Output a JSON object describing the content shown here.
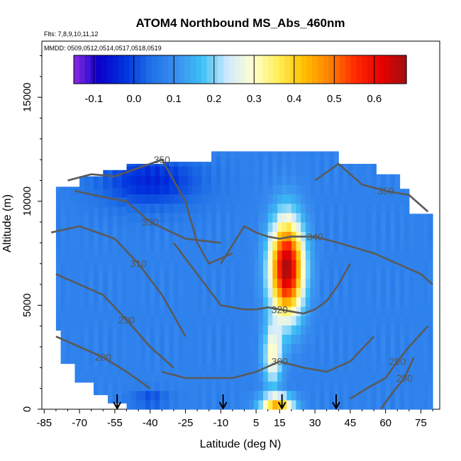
{
  "chart_data": {
    "type": "heatmap",
    "title": "ATOM4 Northbound MS_Abs_460nm",
    "flights_note": "Flts: 7,8,9,10,11,12",
    "dates_note": "MMDD: 0509,0512,0514,0517,0518,0519",
    "xlabel": "Latitude (deg N)",
    "ylabel": "Altitude (m)",
    "xlim": [
      -86,
      83
    ],
    "ylim": [
      0,
      17700
    ],
    "x_ticks": [
      -85,
      -70,
      -55,
      -40,
      -25,
      -10,
      5,
      15,
      30,
      45,
      60,
      75
    ],
    "x_tick_labels": [
      "-85",
      "-70",
      "-55",
      "-40",
      "-25",
      "-10",
      "5",
      "15",
      "30",
      "45",
      "60",
      "75"
    ],
    "y_ticks": [
      0,
      5000,
      10000,
      15000
    ],
    "y_tick_labels": [
      "0",
      "5000",
      "10000",
      "15000"
    ],
    "colorbar": {
      "range": [
        -0.15,
        0.68
      ],
      "ticks": [
        -0.1,
        0.0,
        0.1,
        0.2,
        0.3,
        0.4,
        0.5,
        0.6
      ],
      "tick_labels": [
        "-0.1",
        "0.0",
        "0.1",
        "0.2",
        "0.3",
        "0.4",
        "0.5",
        "0.6"
      ],
      "colors": [
        "#8a2be2",
        "#0a00c8",
        "#0033dd",
        "#1f6fe6",
        "#3a8ff0",
        "#3cc0f5",
        "#cfe9ff",
        "#ffffd0",
        "#ffee55",
        "#ffbf00",
        "#ff8000",
        "#ff2a00",
        "#e80000",
        "#a01010"
      ]
    },
    "field": {
      "background_value": 0.08,
      "features": [
        {
          "kind": "enhancement",
          "lat": 18,
          "alt": 6800,
          "lat_width": 7,
          "alt_width": 2300,
          "peak": 0.6
        },
        {
          "kind": "enhancement",
          "lat": 12,
          "alt": 2600,
          "lat_width": 4,
          "alt_width": 1500,
          "peak": 0.22
        },
        {
          "kind": "enhancement",
          "lat": 14,
          "alt": 300,
          "lat_width": 7,
          "alt_width": 400,
          "peak": 0.35
        },
        {
          "kind": "depletion",
          "lat": -40,
          "alt": 11000,
          "lat_width": 22,
          "alt_width": 1300,
          "peak": -0.12
        },
        {
          "kind": "depletion",
          "lat": -40,
          "alt": 500,
          "lat_width": 8,
          "alt_width": 400,
          "peak": -0.08
        }
      ]
    },
    "theta_contours": [
      {
        "label": "280",
        "lat": [
          -80,
          -70,
          -60,
          -50,
          -40
        ],
        "alt": [
          3500,
          3000,
          2500,
          1800,
          1000
        ]
      },
      {
        "label": "290",
        "lat": [
          -80,
          -70,
          -60,
          -50,
          -40,
          -30
        ],
        "alt": [
          6500,
          6000,
          5500,
          4300,
          3000,
          2000
        ]
      },
      {
        "label": "300",
        "lat": [
          -35,
          -25,
          -15,
          -5,
          5,
          15,
          25,
          35,
          45,
          55
        ],
        "alt": [
          1800,
          1500,
          1500,
          1500,
          1800,
          2300,
          2000,
          1800,
          2300,
          3500
        ]
      },
      {
        "label": "290",
        "lat": [
          45,
          52,
          60,
          65,
          70,
          78
        ],
        "alt": [
          500,
          1000,
          1500,
          2300,
          3000,
          4000
        ]
      },
      {
        "label": "280",
        "lat": [
          58,
          63,
          68,
          72
        ],
        "alt": [
          0,
          800,
          1500,
          2500
        ]
      },
      {
        "label": "310",
        "lat": [
          -82,
          -70,
          -55,
          -45,
          -35,
          -25
        ],
        "alt": [
          8500,
          8800,
          8200,
          7000,
          5500,
          3500
        ]
      },
      {
        "label": "320",
        "lat": [
          -30,
          -20,
          -10,
          0,
          5,
          10,
          15,
          20,
          25,
          30,
          35,
          40,
          45
        ],
        "alt": [
          8000,
          6500,
          5000,
          4800,
          4800,
          4900,
          4800,
          4700,
          4600,
          4800,
          5200,
          6000,
          7000
        ]
      },
      {
        "label": "330",
        "lat": [
          -72,
          -60,
          -50,
          -40,
          -25,
          -10
        ],
        "alt": [
          10500,
          10200,
          10000,
          9000,
          8200,
          8000
        ]
      },
      {
        "label": "340",
        "lat": [
          -10,
          0,
          5,
          10,
          15,
          20,
          30,
          40,
          55,
          65,
          75,
          80
        ],
        "alt": [
          7000,
          8800,
          8500,
          8300,
          8200,
          8300,
          8300,
          8000,
          7500,
          7000,
          6500,
          6000
        ]
      },
      {
        "label": "350",
        "lat": [
          -75,
          -65,
          -55,
          -45,
          -35,
          -25,
          -20,
          -15,
          -5
        ],
        "alt": [
          11000,
          11300,
          11200,
          11600,
          12000,
          10000,
          8000,
          7000,
          7500
        ]
      },
      {
        "label": "350",
        "lat": [
          30,
          40,
          50,
          60,
          70,
          78
        ],
        "alt": [
          11000,
          11800,
          10800,
          10500,
          10300,
          9500
        ]
      }
    ],
    "profile_markers": [
      -54,
      -9,
      16,
      39
    ]
  }
}
